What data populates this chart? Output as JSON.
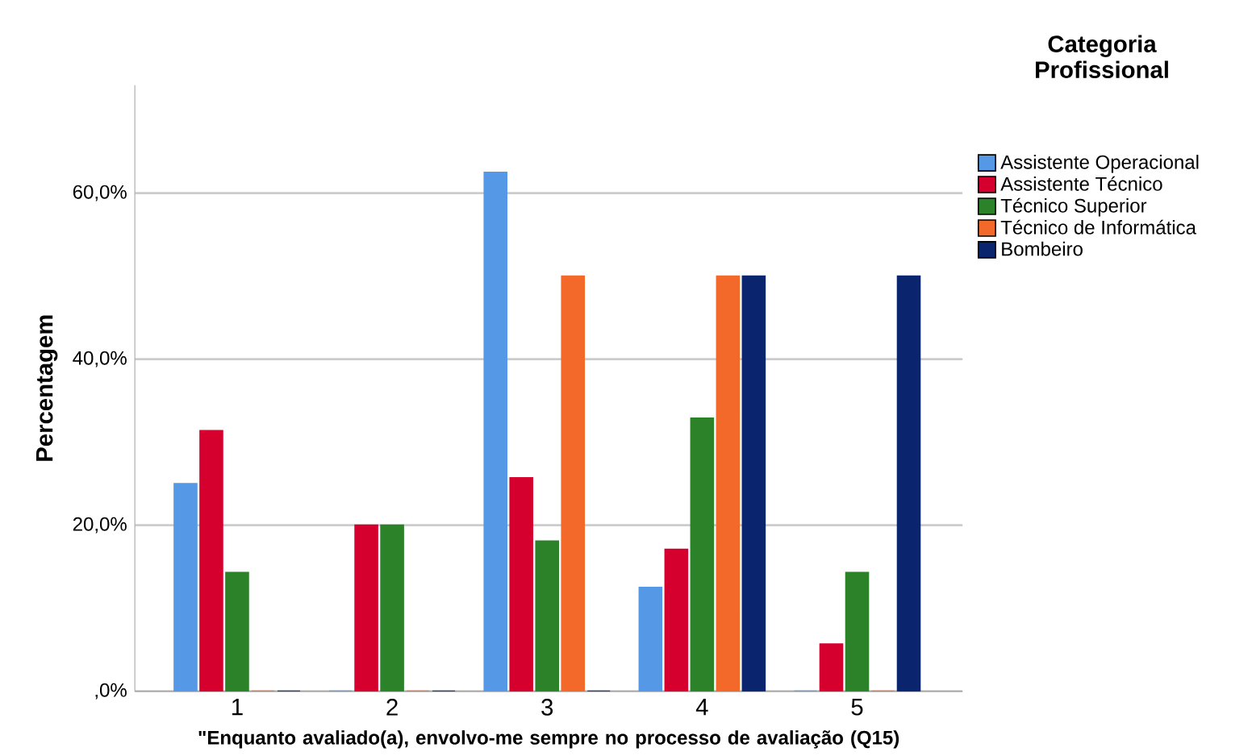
{
  "chart_data": {
    "type": "bar",
    "xlabel": "\"Enquanto avaliado(a), envolvo-me sempre no processo de avaliação (Q15)",
    "ylabel": "Percentagem",
    "legend_title": "Categoria Profissional",
    "categories": [
      "1",
      "2",
      "3",
      "4",
      "5"
    ],
    "series": [
      {
        "name": "Assistente Operacional",
        "color": "#5598e5",
        "values": [
          25,
          0,
          62.5,
          12.5,
          0
        ]
      },
      {
        "name": "Assistente Técnico",
        "color": "#d6002f",
        "values": [
          31.4,
          20,
          25.7,
          17.1,
          5.7
        ]
      },
      {
        "name": "Técnico Superior",
        "color": "#2b8228",
        "values": [
          14.3,
          20,
          18.1,
          32.9,
          14.3
        ]
      },
      {
        "name": "Técnico de Informática",
        "color": "#f2692a",
        "values": [
          0,
          0,
          50,
          50,
          0
        ]
      },
      {
        "name": "Bombeiro",
        "color": "#0a256e",
        "values": [
          0,
          0,
          0,
          50,
          50
        ]
      }
    ],
    "ylim": [
      0,
      73
    ],
    "yticks": [
      {
        "value": 0,
        "label": ",0%"
      },
      {
        "value": 20,
        "label": "20,0%"
      },
      {
        "value": 40,
        "label": "40,0%"
      },
      {
        "value": 60,
        "label": "60,0%"
      }
    ],
    "grid": "y",
    "legend": "right"
  }
}
